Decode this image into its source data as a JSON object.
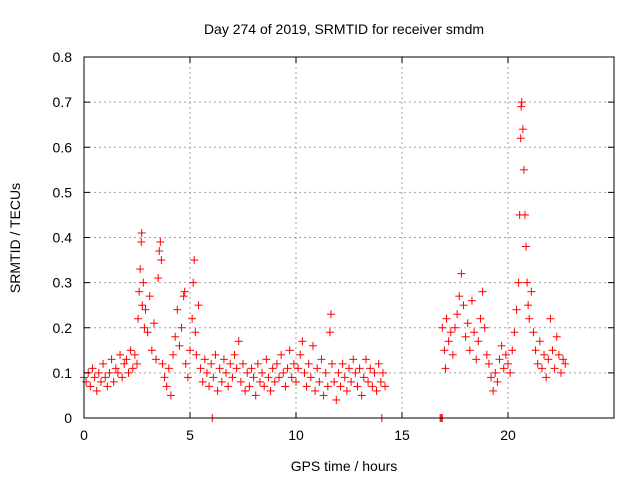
{
  "chart_data": {
    "type": "scatter",
    "title": "Day 274 of 2019, SRMTID for receiver smdm",
    "xlabel": "GPS time / hours",
    "ylabel": "SRMTID / TECUs",
    "xlim": [
      0,
      25
    ],
    "ylim": [
      0,
      0.8
    ],
    "xticks": [
      0,
      5,
      10,
      15,
      20
    ],
    "yticks": [
      0,
      0.1,
      0.2,
      0.3,
      0.4,
      0.5,
      0.6,
      0.7,
      0.8
    ],
    "xtick_labels": [
      "0",
      "5",
      "10",
      "15",
      "20"
    ],
    "ytick_labels": [
      "0",
      "0.1",
      "0.2",
      "0.3",
      "0.4",
      "0.5",
      "0.6",
      "0.7",
      "0.8"
    ],
    "grid": true,
    "marker": "+",
    "color": "#ff0000",
    "series": [
      {
        "name": "smdm",
        "points": [
          [
            0.0,
            0.09
          ],
          [
            0.1,
            0.08
          ],
          [
            0.2,
            0.1
          ],
          [
            0.3,
            0.07
          ],
          [
            0.4,
            0.11
          ],
          [
            0.5,
            0.09
          ],
          [
            0.6,
            0.06
          ],
          [
            0.7,
            0.1
          ],
          [
            0.8,
            0.08
          ],
          [
            0.9,
            0.12
          ],
          [
            1.0,
            0.09
          ],
          [
            1.1,
            0.07
          ],
          [
            1.2,
            0.1
          ],
          [
            1.3,
            0.13
          ],
          [
            1.4,
            0.08
          ],
          [
            1.5,
            0.11
          ],
          [
            1.6,
            0.1
          ],
          [
            1.7,
            0.14
          ],
          [
            1.8,
            0.09
          ],
          [
            1.9,
            0.12
          ],
          [
            2.0,
            0.13
          ],
          [
            2.1,
            0.1
          ],
          [
            2.2,
            0.15
          ],
          [
            2.3,
            0.11
          ],
          [
            2.4,
            0.14
          ],
          [
            2.5,
            0.12
          ],
          [
            2.55,
            0.22
          ],
          [
            2.6,
            0.28
          ],
          [
            2.65,
            0.33
          ],
          [
            2.7,
            0.39
          ],
          [
            2.72,
            0.41
          ],
          [
            2.75,
            0.25
          ],
          [
            2.8,
            0.3
          ],
          [
            2.85,
            0.2
          ],
          [
            2.9,
            0.24
          ],
          [
            3.0,
            0.19
          ],
          [
            3.1,
            0.27
          ],
          [
            3.2,
            0.15
          ],
          [
            3.3,
            0.21
          ],
          [
            3.4,
            0.13
          ],
          [
            3.5,
            0.31
          ],
          [
            3.55,
            0.37
          ],
          [
            3.6,
            0.39
          ],
          [
            3.65,
            0.35
          ],
          [
            3.7,
            0.12
          ],
          [
            3.8,
            0.09
          ],
          [
            3.9,
            0.07
          ],
          [
            4.0,
            0.11
          ],
          [
            4.1,
            0.05
          ],
          [
            4.2,
            0.14
          ],
          [
            4.3,
            0.18
          ],
          [
            4.4,
            0.24
          ],
          [
            4.5,
            0.16
          ],
          [
            4.6,
            0.2
          ],
          [
            4.7,
            0.27
          ],
          [
            4.75,
            0.28
          ],
          [
            4.8,
            0.12
          ],
          [
            4.9,
            0.09
          ],
          [
            5.0,
            0.15
          ],
          [
            5.1,
            0.22
          ],
          [
            5.15,
            0.3
          ],
          [
            5.2,
            0.35
          ],
          [
            5.25,
            0.19
          ],
          [
            5.3,
            0.14
          ],
          [
            5.4,
            0.25
          ],
          [
            5.5,
            0.11
          ],
          [
            5.6,
            0.08
          ],
          [
            5.7,
            0.13
          ],
          [
            5.8,
            0.1
          ],
          [
            5.9,
            0.07
          ],
          [
            6.0,
            0.12
          ],
          [
            6.05,
            0.0
          ],
          [
            6.1,
            0.09
          ],
          [
            6.2,
            0.14
          ],
          [
            6.3,
            0.06
          ],
          [
            6.4,
            0.11
          ],
          [
            6.5,
            0.08
          ],
          [
            6.6,
            0.13
          ],
          [
            6.7,
            0.1
          ],
          [
            6.8,
            0.07
          ],
          [
            6.9,
            0.12
          ],
          [
            7.0,
            0.09
          ],
          [
            7.1,
            0.14
          ],
          [
            7.2,
            0.11
          ],
          [
            7.3,
            0.17
          ],
          [
            7.4,
            0.08
          ],
          [
            7.5,
            0.12
          ],
          [
            7.6,
            0.06
          ],
          [
            7.7,
            0.1
          ],
          [
            7.8,
            0.07
          ],
          [
            7.9,
            0.11
          ],
          [
            8.0,
            0.09
          ],
          [
            8.1,
            0.05
          ],
          [
            8.2,
            0.12
          ],
          [
            8.3,
            0.08
          ],
          [
            8.4,
            0.1
          ],
          [
            8.5,
            0.07
          ],
          [
            8.6,
            0.13
          ],
          [
            8.7,
            0.09
          ],
          [
            8.8,
            0.06
          ],
          [
            8.9,
            0.11
          ],
          [
            9.0,
            0.08
          ],
          [
            9.1,
            0.12
          ],
          [
            9.2,
            0.09
          ],
          [
            9.3,
            0.14
          ],
          [
            9.4,
            0.1
          ],
          [
            9.5,
            0.07
          ],
          [
            9.6,
            0.11
          ],
          [
            9.7,
            0.15
          ],
          [
            9.8,
            0.09
          ],
          [
            9.9,
            0.12
          ],
          [
            10.0,
            0.08
          ],
          [
            10.1,
            0.11
          ],
          [
            10.2,
            0.14
          ],
          [
            10.3,
            0.17
          ],
          [
            10.4,
            0.1
          ],
          [
            10.5,
            0.07
          ],
          [
            10.6,
            0.12
          ],
          [
            10.7,
            0.09
          ],
          [
            10.8,
            0.16
          ],
          [
            10.9,
            0.06
          ],
          [
            11.0,
            0.11
          ],
          [
            11.1,
            0.08
          ],
          [
            11.2,
            0.13
          ],
          [
            11.3,
            0.05
          ],
          [
            11.4,
            0.1
          ],
          [
            11.5,
            0.07
          ],
          [
            11.6,
            0.19
          ],
          [
            11.65,
            0.23
          ],
          [
            11.7,
            0.12
          ],
          [
            11.8,
            0.08
          ],
          [
            11.9,
            0.04
          ],
          [
            12.0,
            0.1
          ],
          [
            12.1,
            0.07
          ],
          [
            12.2,
            0.12
          ],
          [
            12.3,
            0.09
          ],
          [
            12.4,
            0.06
          ],
          [
            12.5,
            0.11
          ],
          [
            12.6,
            0.08
          ],
          [
            12.7,
            0.13
          ],
          [
            12.8,
            0.1
          ],
          [
            12.9,
            0.07
          ],
          [
            13.0,
            0.11
          ],
          [
            13.1,
            0.05
          ],
          [
            13.2,
            0.09
          ],
          [
            13.3,
            0.13
          ],
          [
            13.4,
            0.08
          ],
          [
            13.5,
            0.11
          ],
          [
            13.6,
            0.07
          ],
          [
            13.7,
            0.1
          ],
          [
            13.8,
            0.06
          ],
          [
            13.9,
            0.12
          ],
          [
            14.0,
            0.08
          ],
          [
            14.05,
            0.0
          ],
          [
            14.1,
            0.1
          ],
          [
            14.2,
            0.07
          ],
          [
            16.8,
            0.0
          ],
          [
            16.85,
            0.0
          ],
          [
            16.9,
            0.0
          ],
          [
            16.9,
            0.2
          ],
          [
            17.0,
            0.15
          ],
          [
            17.05,
            0.11
          ],
          [
            17.1,
            0.22
          ],
          [
            17.2,
            0.17
          ],
          [
            17.3,
            0.19
          ],
          [
            17.4,
            0.14
          ],
          [
            17.5,
            0.2
          ],
          [
            17.6,
            0.23
          ],
          [
            17.7,
            0.27
          ],
          [
            17.8,
            0.32
          ],
          [
            17.9,
            0.25
          ],
          [
            18.0,
            0.18
          ],
          [
            18.1,
            0.21
          ],
          [
            18.2,
            0.15
          ],
          [
            18.3,
            0.26
          ],
          [
            18.4,
            0.19
          ],
          [
            18.5,
            0.13
          ],
          [
            18.6,
            0.17
          ],
          [
            18.7,
            0.22
          ],
          [
            18.8,
            0.28
          ],
          [
            18.9,
            0.2
          ],
          [
            19.0,
            0.14
          ],
          [
            19.1,
            0.12
          ],
          [
            19.2,
            0.09
          ],
          [
            19.3,
            0.06
          ],
          [
            19.4,
            0.1
          ],
          [
            19.5,
            0.08
          ],
          [
            19.6,
            0.13
          ],
          [
            19.7,
            0.16
          ],
          [
            19.8,
            0.11
          ],
          [
            19.9,
            0.14
          ],
          [
            20.0,
            0.12
          ],
          [
            20.1,
            0.1
          ],
          [
            20.2,
            0.15
          ],
          [
            20.3,
            0.19
          ],
          [
            20.4,
            0.24
          ],
          [
            20.5,
            0.3
          ],
          [
            20.55,
            0.45
          ],
          [
            20.6,
            0.62
          ],
          [
            20.62,
            0.69
          ],
          [
            20.65,
            0.7
          ],
          [
            20.7,
            0.64
          ],
          [
            20.75,
            0.55
          ],
          [
            20.8,
            0.45
          ],
          [
            20.85,
            0.38
          ],
          [
            20.9,
            0.3
          ],
          [
            20.95,
            0.25
          ],
          [
            21.0,
            0.22
          ],
          [
            21.1,
            0.28
          ],
          [
            21.2,
            0.19
          ],
          [
            21.3,
            0.15
          ],
          [
            21.4,
            0.12
          ],
          [
            21.5,
            0.17
          ],
          [
            21.6,
            0.11
          ],
          [
            21.7,
            0.14
          ],
          [
            21.8,
            0.09
          ],
          [
            21.9,
            0.13
          ],
          [
            22.0,
            0.22
          ],
          [
            22.1,
            0.15
          ],
          [
            22.2,
            0.11
          ],
          [
            22.3,
            0.18
          ],
          [
            22.4,
            0.14
          ],
          [
            22.5,
            0.1
          ],
          [
            22.6,
            0.13
          ],
          [
            22.7,
            0.12
          ]
        ]
      }
    ]
  }
}
